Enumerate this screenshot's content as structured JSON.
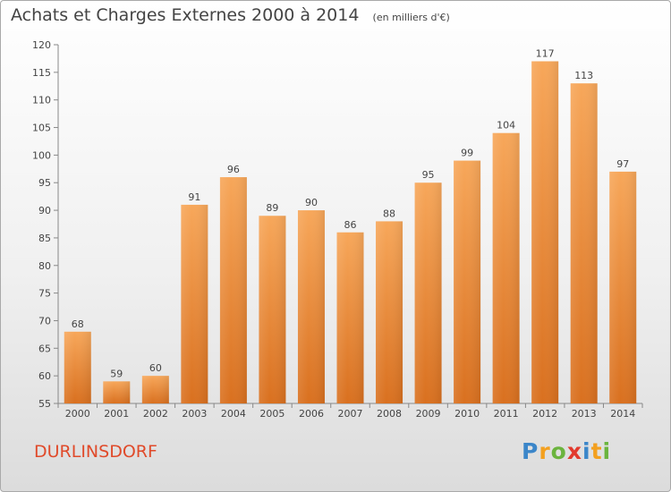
{
  "header": {
    "title": "Achats et Charges Externes 2000 à 2014",
    "subtitle": "(en milliers d'€)"
  },
  "footer": {
    "location": "DURLINSDORF",
    "logo_text": "Proxiti"
  },
  "colors": {
    "bar_light": "#f7a75a",
    "bar_dark": "#d9701f",
    "location": "#e04a2a"
  },
  "chart_data": {
    "type": "bar",
    "title": "Achats et Charges Externes 2000 à 2014",
    "subtitle": "(en milliers d'€)",
    "categories": [
      "2000",
      "2001",
      "2002",
      "2003",
      "2004",
      "2005",
      "2006",
      "2007",
      "2008",
      "2009",
      "2010",
      "2011",
      "2012",
      "2013",
      "2014"
    ],
    "values": [
      68,
      59,
      60,
      91,
      96,
      89,
      90,
      86,
      88,
      95,
      99,
      104,
      117,
      113,
      97
    ],
    "data_labels": [
      "68",
      "59",
      "60",
      "91",
      "96",
      "89",
      "90",
      "86",
      "88",
      "95",
      "99",
      "104",
      "117",
      "113",
      "97"
    ],
    "ylim": [
      55,
      120
    ],
    "yticks": [
      55,
      60,
      65,
      70,
      75,
      80,
      85,
      90,
      95,
      100,
      105,
      110,
      115,
      120
    ],
    "xlabel": "",
    "ylabel": "",
    "grid": false
  }
}
